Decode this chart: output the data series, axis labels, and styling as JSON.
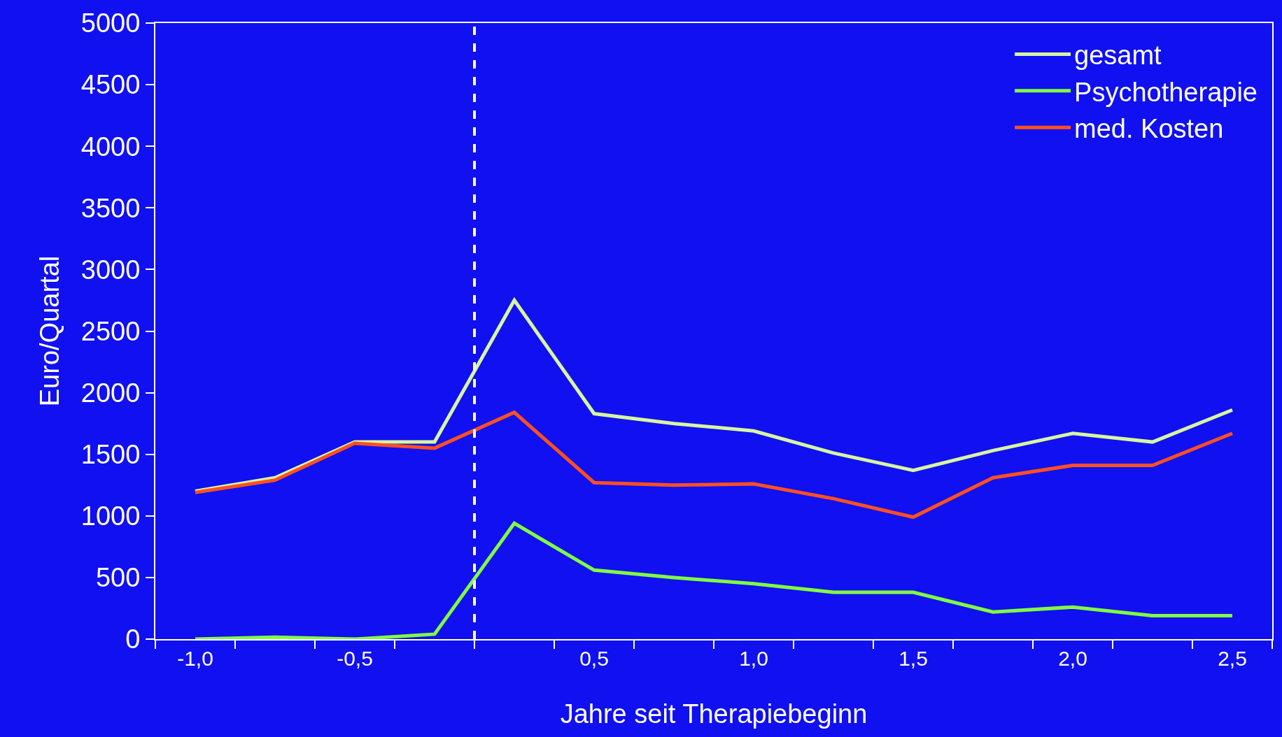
{
  "chart_data": {
    "type": "line",
    "xlabel": "Jahre seit Therapiebeginn",
    "ylabel": "Euro/Quartal",
    "categories": [
      "-1,0",
      null,
      "-0,5",
      null,
      null,
      "0,5",
      null,
      "1,0",
      null,
      "1,5",
      null,
      "2,0",
      null,
      "2,5"
    ],
    "series": [
      {
        "name": "gesamt",
        "color": "#d8f5a0",
        "values": [
          1200,
          1310,
          1600,
          1600,
          2750,
          1830,
          1750,
          1690,
          1510,
          1370,
          1530,
          1670,
          1600,
          1860
        ]
      },
      {
        "name": "Psychotherapie",
        "color": "#80ff40",
        "values": [
          0,
          15,
          0,
          40,
          940,
          560,
          500,
          450,
          380,
          380,
          220,
          260,
          190,
          190
        ]
      },
      {
        "name": "med. Kosten",
        "color": "#ff5020",
        "values": [
          1190,
          1290,
          1590,
          1550,
          1840,
          1270,
          1250,
          1260,
          1140,
          990,
          1310,
          1410,
          1410,
          1670
        ]
      }
    ],
    "ylim": [
      0,
      5000
    ],
    "yticks": [
      0,
      500,
      1000,
      1500,
      2000,
      2500,
      3000,
      3500,
      4000,
      4500,
      5000
    ],
    "grid": false,
    "legend": "top right",
    "marker": "none",
    "line_style": "solid"
  }
}
